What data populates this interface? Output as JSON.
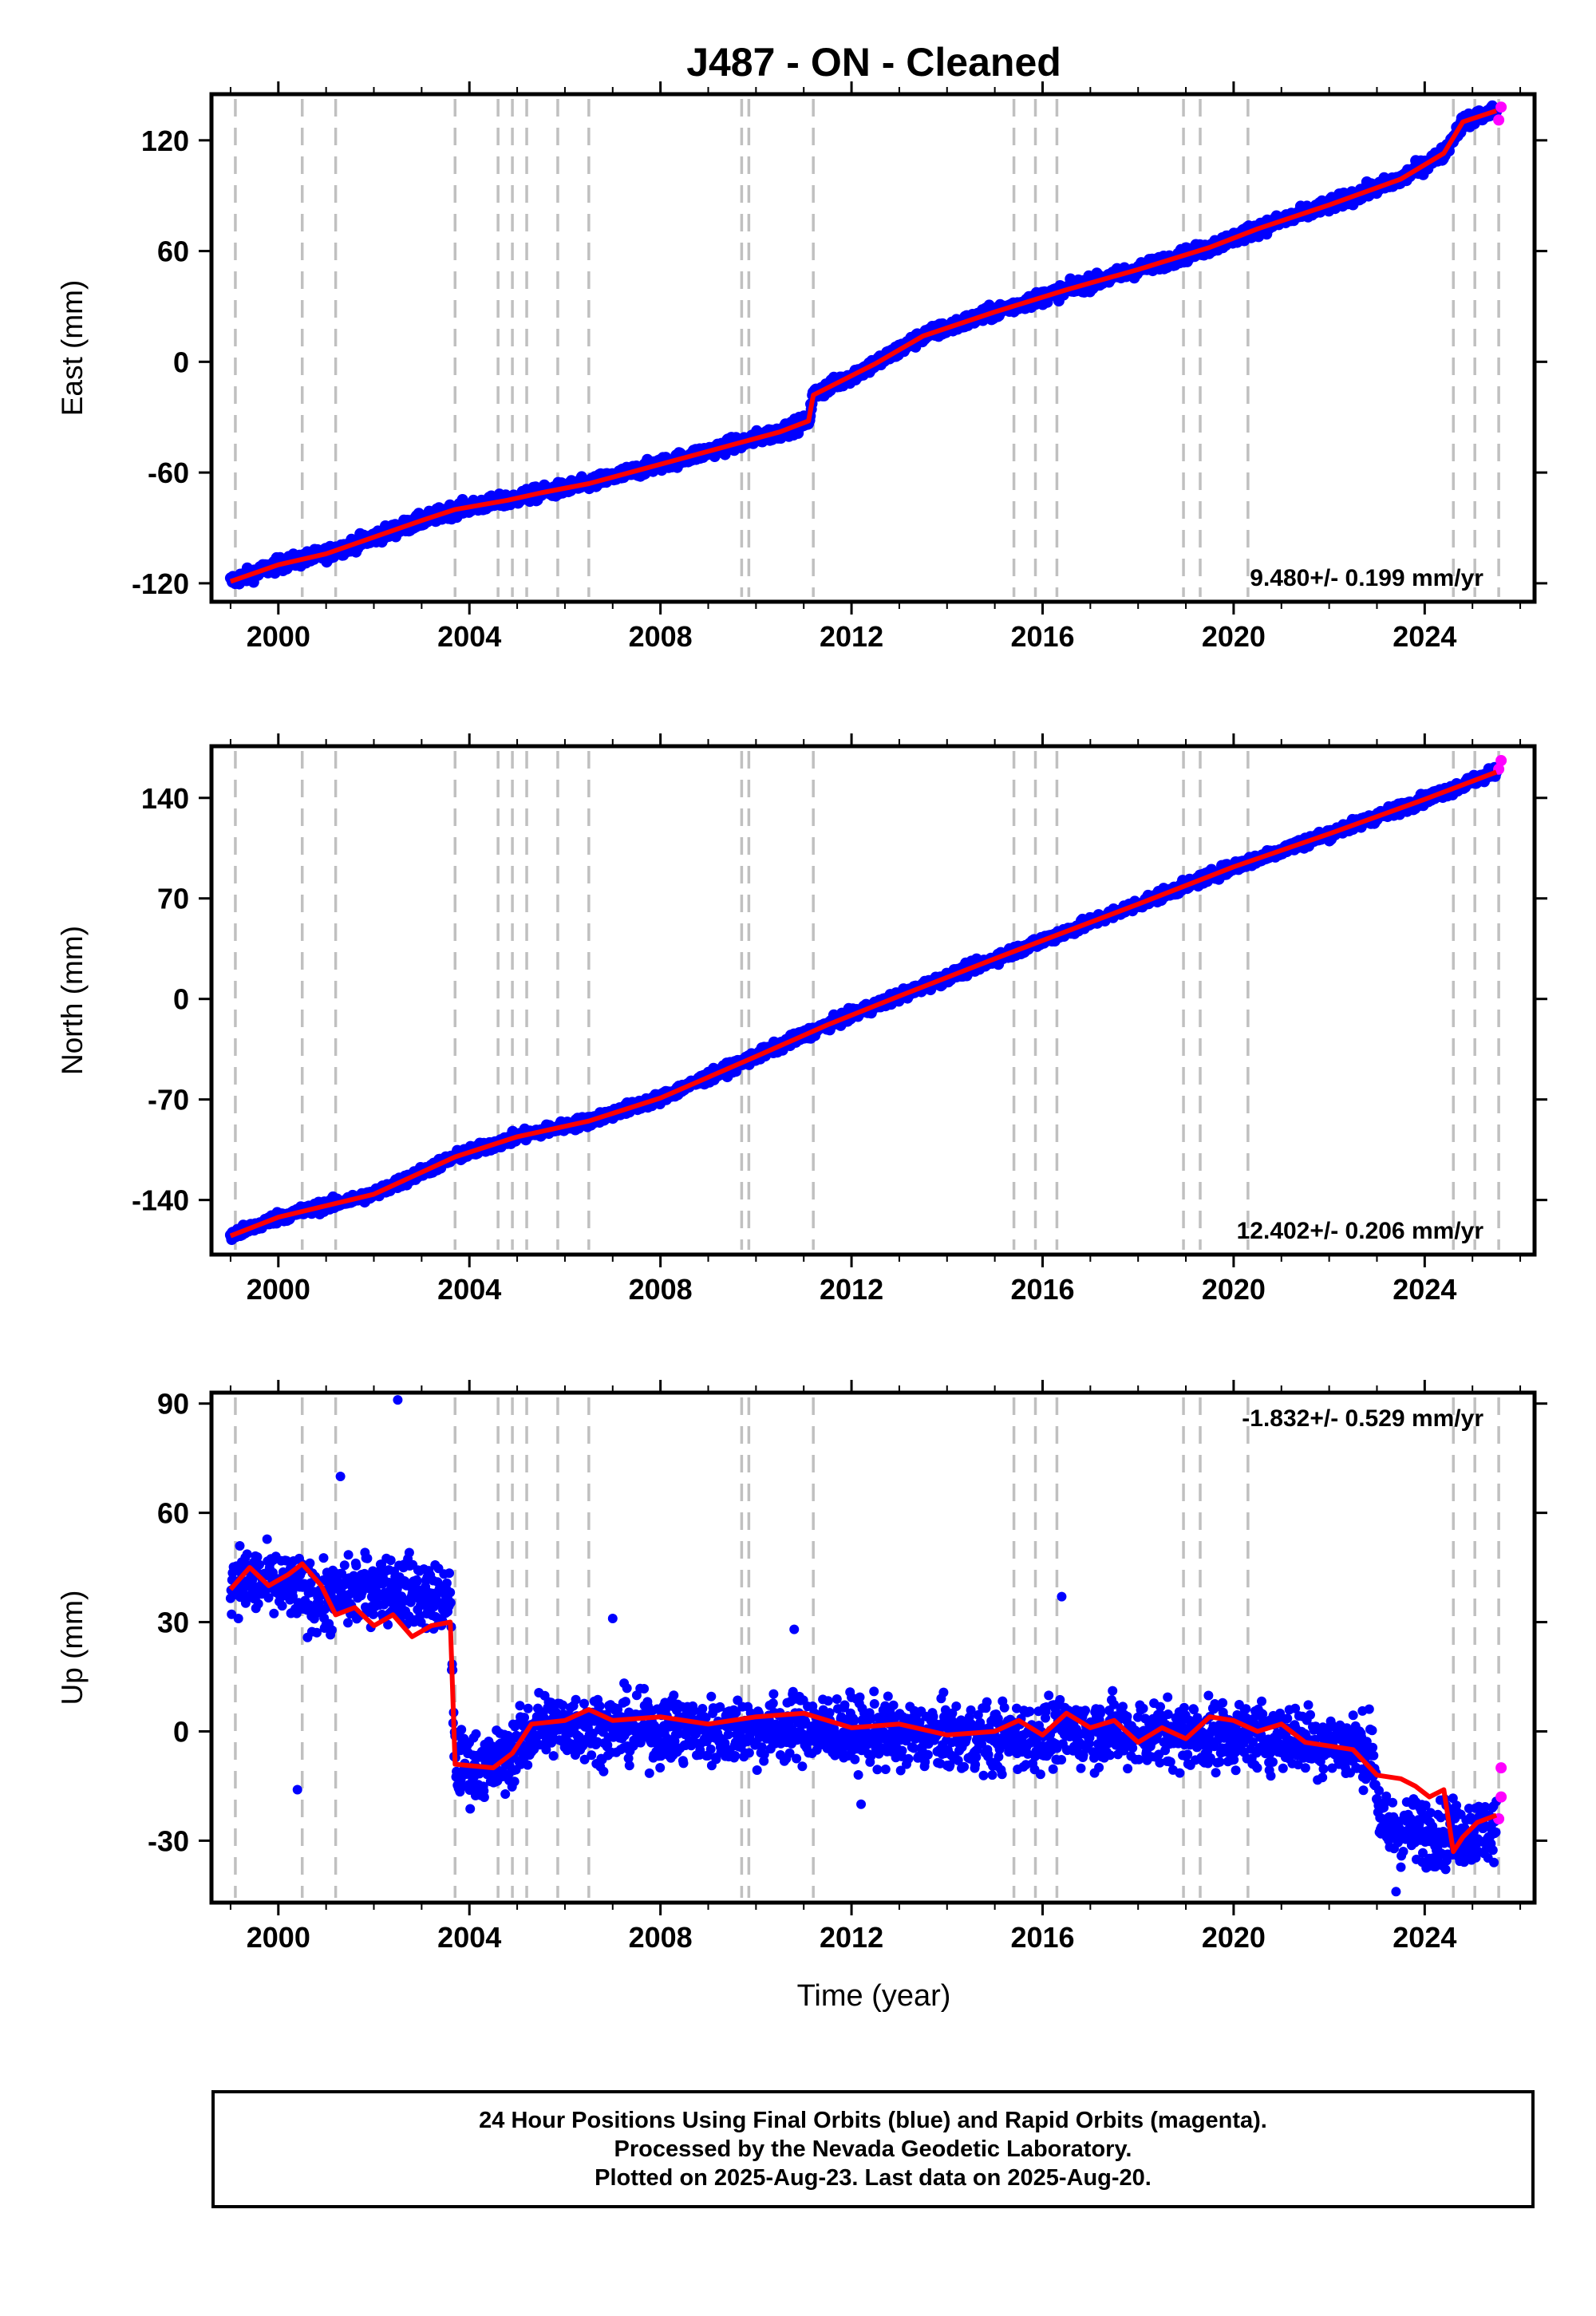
{
  "title": "J487  - ON - Cleaned",
  "xlabel": "Time (year)",
  "colors": {
    "final": "#0000ff",
    "rapid": "#ff00ff",
    "model": "#ff0000",
    "events": "#c0c0c0",
    "frame": "#000000"
  },
  "caption": [
    "24 Hour Positions Using Final Orbits (blue) and Rapid Orbits (magenta).",
    "Processed by the Nevada Geodetic Laboratory.",
    "Plotted on 2025-Aug-23. Last data on 2025-Aug-20."
  ],
  "chart_data": [
    {
      "type": "scatter",
      "component": "East",
      "ylabel": "East (mm)",
      "xlim": [
        1998.6,
        2026.3
      ],
      "ylim": [
        -130,
        145
      ],
      "yticks": [
        -120,
        -60,
        0,
        60,
        120
      ],
      "xticks": [
        2000,
        2004,
        2008,
        2012,
        2016,
        2020,
        2024
      ],
      "rate_label": "9.480+/- 0.199 mm/yr",
      "rate_position": "bottom-right",
      "grid": false,
      "event_lines": [
        1999.1,
        2000.5,
        2001.2,
        2003.7,
        2004.6,
        2004.9,
        2005.2,
        2005.85,
        2006.5,
        2009.7,
        2009.85,
        2011.2,
        2015.4,
        2015.85,
        2016.3,
        2018.95,
        2019.3,
        2020.3,
        2024.6,
        2025.05,
        2025.55
      ],
      "series": [
        {
          "kind": "final",
          "x": [
            1999.0,
            2000.0,
            2001.0,
            2002.0,
            2003.0,
            2003.7,
            2004.8,
            2005.5,
            2006.5,
            2007.5,
            2008.5,
            2009.5,
            2010.5,
            2011.1,
            2011.2,
            2012.5,
            2013.5,
            2015.0,
            2016.5,
            2018.0,
            2019.5,
            2020.5,
            2022.0,
            2023.5,
            2024.4,
            2024.8,
            2025.5
          ],
          "y": [
            -119,
            -110,
            -104,
            -95,
            -86,
            -80,
            -75,
            -71,
            -66,
            -59,
            -52,
            -45,
            -38,
            -32,
            -18,
            -1,
            14,
            27,
            39,
            50,
            62,
            72,
            85,
            99,
            113,
            130,
            136
          ]
        },
        {
          "kind": "rapid",
          "x": [
            2025.55,
            2025.6
          ],
          "y": [
            131,
            138
          ]
        },
        {
          "kind": "model",
          "x": [
            1999.0,
            2000.0,
            2001.0,
            2002.0,
            2003.0,
            2003.7,
            2004.8,
            2005.5,
            2006.5,
            2007.5,
            2008.5,
            2009.5,
            2010.5,
            2011.1,
            2011.2,
            2012.5,
            2013.5,
            2015.0,
            2016.5,
            2018.0,
            2019.5,
            2020.5,
            2022.0,
            2023.5,
            2024.4,
            2024.8,
            2025.5
          ],
          "y": [
            -119,
            -110,
            -104,
            -95,
            -86,
            -80,
            -75,
            -71,
            -66,
            -59,
            -52,
            -45,
            -38,
            -32,
            -18,
            -1,
            14,
            27,
            39,
            50,
            62,
            72,
            85,
            99,
            113,
            130,
            136
          ]
        }
      ]
    },
    {
      "type": "scatter",
      "component": "North",
      "ylabel": "North (mm)",
      "xlim": [
        1998.6,
        2026.3
      ],
      "ylim": [
        -178,
        176
      ],
      "yticks": [
        -140,
        -70,
        0,
        70,
        140
      ],
      "xticks": [
        2000,
        2004,
        2008,
        2012,
        2016,
        2020,
        2024
      ],
      "rate_label": "12.402+/- 0.206 mm/yr",
      "rate_position": "bottom-right",
      "grid": false,
      "event_lines": [
        1999.1,
        2000.5,
        2001.2,
        2003.7,
        2004.6,
        2004.9,
        2005.2,
        2005.85,
        2006.5,
        2009.7,
        2009.85,
        2011.2,
        2015.4,
        2015.85,
        2016.3,
        2018.95,
        2019.3,
        2020.3,
        2024.6,
        2025.05,
        2025.55
      ],
      "series": [
        {
          "kind": "final",
          "x": [
            1999.0,
            2000.0,
            2002.0,
            2003.7,
            2005.0,
            2006.5,
            2008.0,
            2010.0,
            2011.5,
            2013.0,
            2015.0,
            2016.5,
            2018.0,
            2020.0,
            2022.0,
            2024.0,
            2025.5
          ],
          "y": [
            -165,
            -152,
            -136,
            -110,
            -96,
            -85,
            -69,
            -40,
            -18,
            2,
            28,
            47,
            66,
            92,
            115,
            139,
            158
          ]
        },
        {
          "kind": "rapid",
          "x": [
            2025.55,
            2025.6
          ],
          "y": [
            160,
            166
          ]
        },
        {
          "kind": "model",
          "x": [
            1999.0,
            2000.0,
            2002.0,
            2003.7,
            2005.0,
            2006.5,
            2008.0,
            2010.0,
            2011.5,
            2013.0,
            2015.0,
            2016.5,
            2018.0,
            2020.0,
            2022.0,
            2024.0,
            2025.5
          ],
          "y": [
            -165,
            -152,
            -136,
            -110,
            -96,
            -85,
            -69,
            -40,
            -18,
            2,
            28,
            47,
            66,
            92,
            115,
            139,
            158
          ]
        }
      ]
    },
    {
      "type": "scatter",
      "component": "Up",
      "ylabel": "Up (mm)",
      "xlim": [
        1998.6,
        2026.3
      ],
      "ylim": [
        -47,
        93
      ],
      "yticks": [
        -30,
        0,
        30,
        60,
        90
      ],
      "xticks": [
        2000,
        2004,
        2008,
        2012,
        2016,
        2020,
        2024
      ],
      "rate_label": "-1.832+/- 0.529 mm/yr",
      "rate_position": "top-right",
      "grid": false,
      "event_lines": [
        1999.1,
        2000.5,
        2001.2,
        2003.7,
        2004.6,
        2004.9,
        2005.2,
        2005.85,
        2006.5,
        2009.7,
        2009.85,
        2011.2,
        2015.4,
        2015.85,
        2016.3,
        2018.95,
        2019.3,
        2020.3,
        2024.6,
        2025.05,
        2025.55
      ],
      "series": [
        {
          "kind": "final",
          "x": [
            1999.0,
            2000.0,
            2001.0,
            2002.0,
            2003.0,
            2003.6,
            2003.7,
            2004.5,
            2005.5,
            2007.0,
            2009.0,
            2011.0,
            2013.0,
            2015.0,
            2017.0,
            2019.0,
            2021.0,
            2022.9,
            2023.1,
            2024.5,
            2025.5
          ],
          "y": [
            42,
            40,
            36,
            40,
            38,
            35,
            -9,
            -10,
            2,
            1,
            0,
            1,
            -1,
            -2,
            0,
            -1,
            -1,
            -5,
            -27,
            -28,
            -27
          ]
        },
        {
          "kind": "rapid",
          "x": [
            2025.55,
            2025.6,
            2025.6
          ],
          "y": [
            -24,
            -18,
            -10
          ]
        },
        {
          "kind": "model",
          "x": [
            1999.0,
            1999.4,
            1999.8,
            2000.2,
            2000.5,
            2000.9,
            2001.2,
            2001.6,
            2002.0,
            2002.4,
            2002.8,
            2003.2,
            2003.6,
            2003.7,
            2004.5,
            2004.9,
            2005.3,
            2006.0,
            2006.5,
            2007.0,
            2008.0,
            2009.0,
            2010.0,
            2011.0,
            2012.0,
            2013.0,
            2014.0,
            2015.0,
            2015.5,
            2016.0,
            2016.5,
            2017.0,
            2017.5,
            2018.0,
            2018.5,
            2019.0,
            2019.5,
            2020.0,
            2020.5,
            2021.0,
            2021.5,
            2022.0,
            2022.5,
            2023.0,
            2023.5,
            2023.8,
            2024.1,
            2024.4,
            2024.6,
            2024.8,
            2025.1,
            2025.5
          ],
          "y": [
            39,
            45,
            40,
            43,
            46,
            40,
            32,
            34,
            29,
            32,
            26,
            29,
            30,
            -9,
            -10,
            -6,
            2,
            3,
            6,
            3,
            4,
            2,
            4,
            5,
            1,
            2,
            -1,
            0,
            3,
            -1,
            5,
            1,
            3,
            -3,
            1,
            -2,
            4,
            3,
            0,
            2,
            -3,
            -4,
            -5,
            -12,
            -13,
            -15,
            -18,
            -16,
            -33,
            -29,
            -25,
            -23
          ]
        }
      ]
    }
  ]
}
